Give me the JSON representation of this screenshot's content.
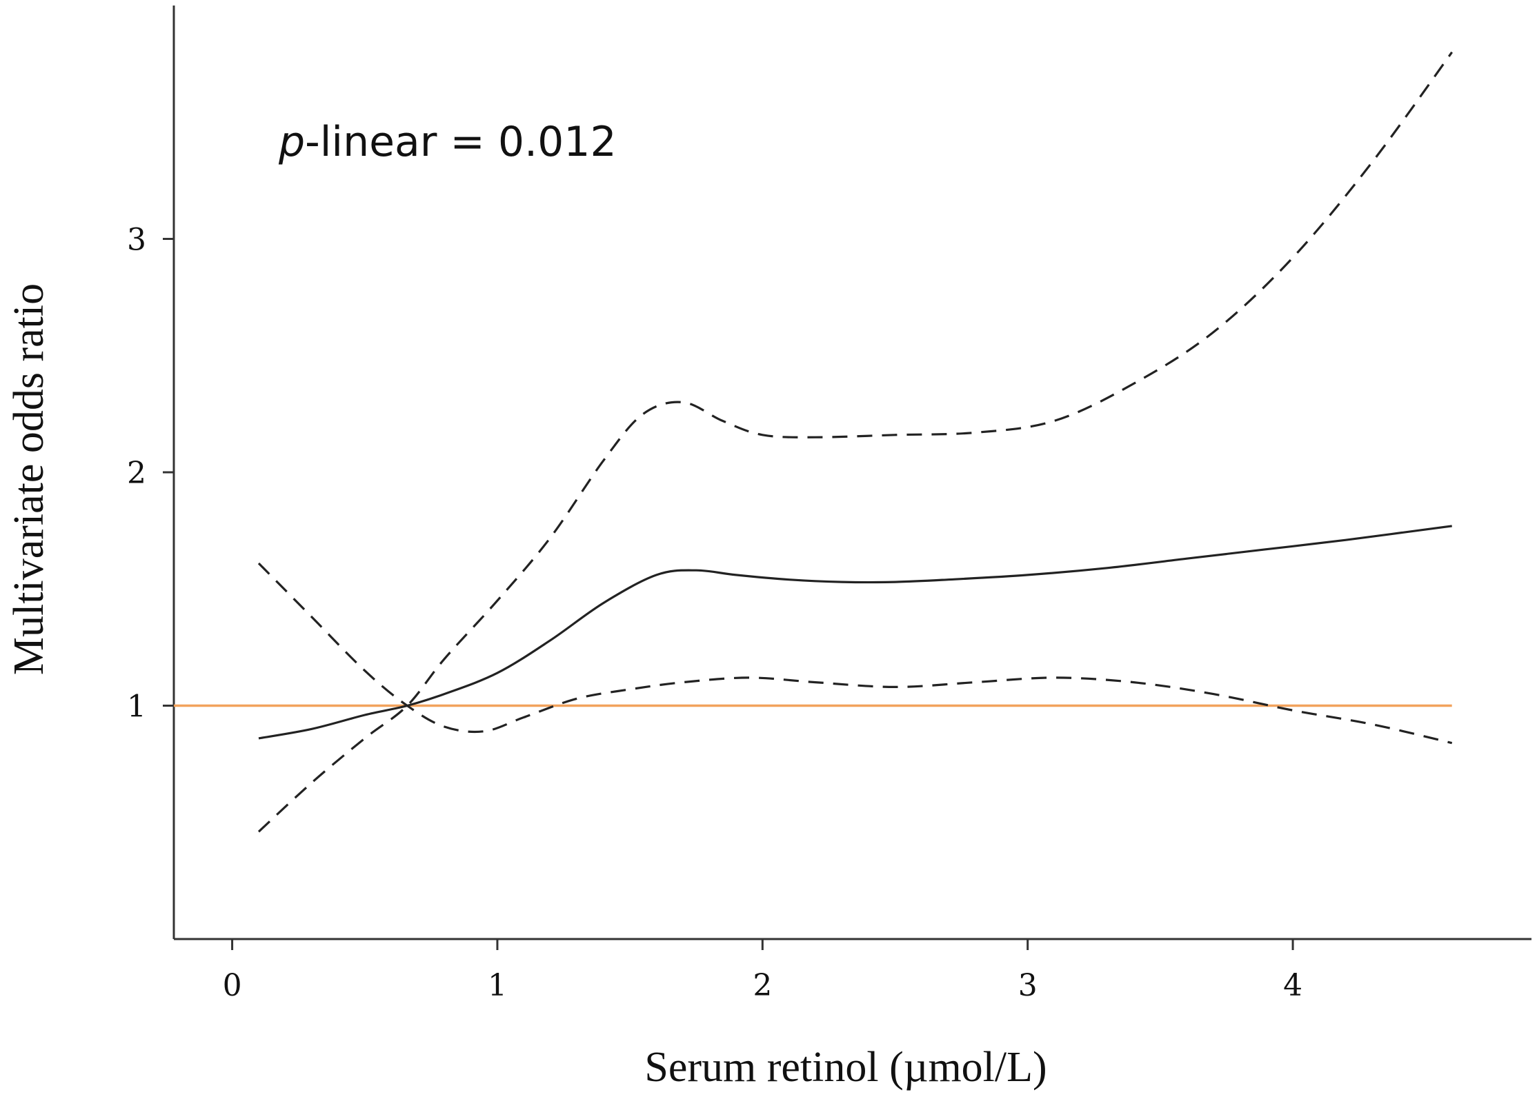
{
  "chart_data": {
    "type": "line",
    "title": "",
    "xlabel": "Serum retinol (µmol/L)",
    "ylabel": "Multivariate odds ratio",
    "xlim": [
      -0.22,
      4.9
    ],
    "ylim": [
      0.0,
      4.0
    ],
    "x_ticks": [
      0,
      1,
      2,
      3,
      4
    ],
    "y_ticks": [
      1,
      2,
      3
    ],
    "grid": false,
    "legend": "none",
    "annotation": {
      "prefix": "p",
      "text": "-linear = 0.012"
    },
    "reference_line": {
      "y": 1.0,
      "x_range": [
        -0.22,
        4.6
      ],
      "color": "#f2a25c"
    },
    "series": [
      {
        "style": "solid",
        "color": "#222222",
        "x": [
          0.1,
          0.3,
          0.5,
          0.66,
          0.8,
          1.0,
          1.2,
          1.4,
          1.6,
          1.75,
          1.9,
          2.1,
          2.3,
          2.5,
          2.7,
          3.0,
          3.3,
          3.6,
          3.9,
          4.2,
          4.6
        ],
        "y": [
          0.86,
          0.9,
          0.96,
          1.0,
          1.05,
          1.14,
          1.28,
          1.44,
          1.56,
          1.58,
          1.56,
          1.54,
          1.53,
          1.53,
          1.54,
          1.56,
          1.59,
          1.63,
          1.67,
          1.71,
          1.77
        ]
      },
      {
        "style": "dashed",
        "color": "#222222",
        "x": [
          0.1,
          0.3,
          0.5,
          0.66,
          0.8,
          1.0,
          1.2,
          1.4,
          1.55,
          1.7,
          1.85,
          2.0,
          2.2,
          2.5,
          2.8,
          3.1,
          3.4,
          3.7,
          4.0,
          4.3,
          4.6
        ],
        "y": [
          0.46,
          0.67,
          0.86,
          1.0,
          1.2,
          1.45,
          1.72,
          2.05,
          2.25,
          2.3,
          2.22,
          2.16,
          2.15,
          2.16,
          2.17,
          2.22,
          2.38,
          2.6,
          2.92,
          3.33,
          3.8
        ]
      },
      {
        "style": "dashed",
        "color": "#222222",
        "x": [
          0.1,
          0.3,
          0.5,
          0.66,
          0.8,
          0.95,
          1.1,
          1.3,
          1.5,
          1.7,
          1.95,
          2.2,
          2.5,
          2.8,
          3.1,
          3.4,
          3.7,
          4.0,
          4.3,
          4.6
        ],
        "y": [
          1.61,
          1.38,
          1.15,
          1.0,
          0.91,
          0.89,
          0.95,
          1.03,
          1.07,
          1.1,
          1.12,
          1.1,
          1.08,
          1.1,
          1.12,
          1.1,
          1.05,
          0.98,
          0.92,
          0.84
        ]
      }
    ]
  }
}
